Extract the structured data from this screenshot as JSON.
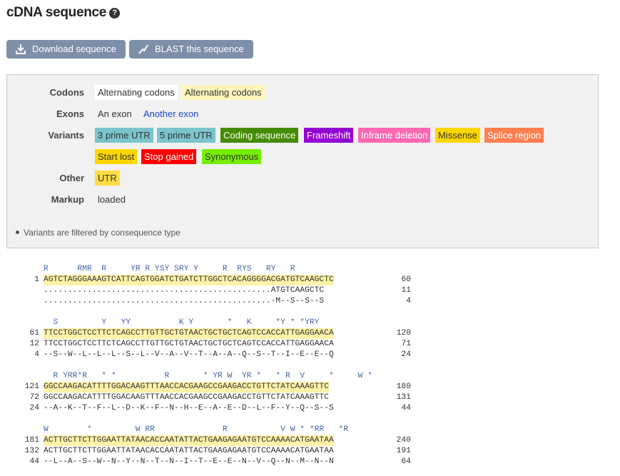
{
  "header": {
    "title": "cDNA sequence",
    "help_icon": "?"
  },
  "toolbar": {
    "download_label": "Download sequence",
    "blast_label": "BLAST this sequence"
  },
  "legend": {
    "codons_label": "Codons",
    "codons": [
      "Alternating codons",
      "Alternating codons"
    ],
    "exons_label": "Exons",
    "exons": [
      "An exon",
      "Another exon"
    ],
    "variants_label": "Variants",
    "variants": [
      {
        "label": "3 prime UTR",
        "bg": "#7ac5cd",
        "fg": "#333333"
      },
      {
        "label": "5 prime UTR",
        "bg": "#7ac5cd",
        "fg": "#333333"
      },
      {
        "label": "Coding sequence",
        "bg": "#458b00",
        "fg": "#ffffff"
      },
      {
        "label": "Frameshift",
        "bg": "#9400d3",
        "fg": "#ffffff"
      },
      {
        "label": "Inframe deletion",
        "bg": "#ff69b4",
        "fg": "#ffffff"
      },
      {
        "label": "Missense",
        "bg": "#ffd700",
        "fg": "#333333"
      },
      {
        "label": "Splice region",
        "bg": "#ff7f50",
        "fg": "#ffffff"
      },
      {
        "label": "Start lost",
        "bg": "#ffd700",
        "fg": "#333333"
      },
      {
        "label": "Stop gained",
        "bg": "#ff0000",
        "fg": "#ffffff"
      },
      {
        "label": "Synonymous",
        "bg": "#76ee00",
        "fg": "#333333"
      }
    ],
    "other_label": "Other",
    "other": "UTR",
    "markup_label": "Markup",
    "markup": "loaded",
    "note": "Variants are filtered by consequence type"
  },
  "sequence": {
    "blocks": [
      {
        "marks": "R      RMR  R     YR R YSY SRY Y     R  RYS   RY   R",
        "top_num": "1",
        "top": "AGTCTAGGGAAAGTCATTCAGTGGATCTGATCTTGGCTCACAGGGGACGATGTCAAGCTC",
        "top_end": "60",
        "mid_num": "",
        "mid": "...............................................ATGTCAAGCTC",
        "mid_end": "11",
        "bot_num": "",
        "bot": "...............................................-M--S--S--S",
        "bot_end": "4"
      },
      {
        "marks": "  S         Y   YY          K Y       *   K     *Y * *YRY",
        "top_num": "61",
        "top": "TTCCTGGCTCCTTCTCAGCCTTGTTGCTGTAACTGCTGCTCAGTCCACCATTGAGGAACA",
        "top_end": "120",
        "mid_num": "12",
        "mid": "TTCCTGGCTCCTTCTCAGCCTTGTTGCTGTAACTGCTGCTCAGTCCACCATTGAGGAACA",
        "mid_end": "71",
        "bot_num": "4",
        "bot": "--S--W--L--L--L--S--L--V--A--V--T--A--A--Q--S--T--I--E--E--Q",
        "bot_end": "24"
      },
      {
        "marks": "  R YRR*R   * *          R       * YR W  YR *   * R  V     *     W *",
        "top_num": "121",
        "top": "GGCCAAGACATTTTGGACAAGTTTAACCACGAAGCCGAAGACCTGTTCTATCAAAGTTC",
        "top_end": "180",
        "mid_num": "72",
        "mid": "GGCCAAGACATTTTGGACAAGTTTAACCACGAAGCCGAAGACCTGTTCTATCAAAGTTC",
        "mid_end": "131",
        "bot_num": "24",
        "bot": "--A--K--T--F--L--D--K--F--N--H--E--A--E--D--L--F--Y--Q--S--S",
        "bot_end": "44"
      },
      {
        "marks": "W        *         W RR              R           V W * *RR   *R",
        "top_num": "181",
        "top": "ACTTGCTTCTTGGAATTATAACACCAATATTACTGAAGAGAATGTCCAAAACATGAATAA",
        "top_end": "240",
        "mid_num": "132",
        "mid": "ACTTGCTTCTTGGAATTATAACACCAATATTACTGAAGAGAATGTCCAAAACATGAATAA",
        "mid_end": "191",
        "bot_num": "44",
        "bot": "--L--A--S--W--N--Y--N--T--N--I--T--E--E--N--V--Q--N--M--N--N",
        "bot_end": "64"
      }
    ]
  }
}
